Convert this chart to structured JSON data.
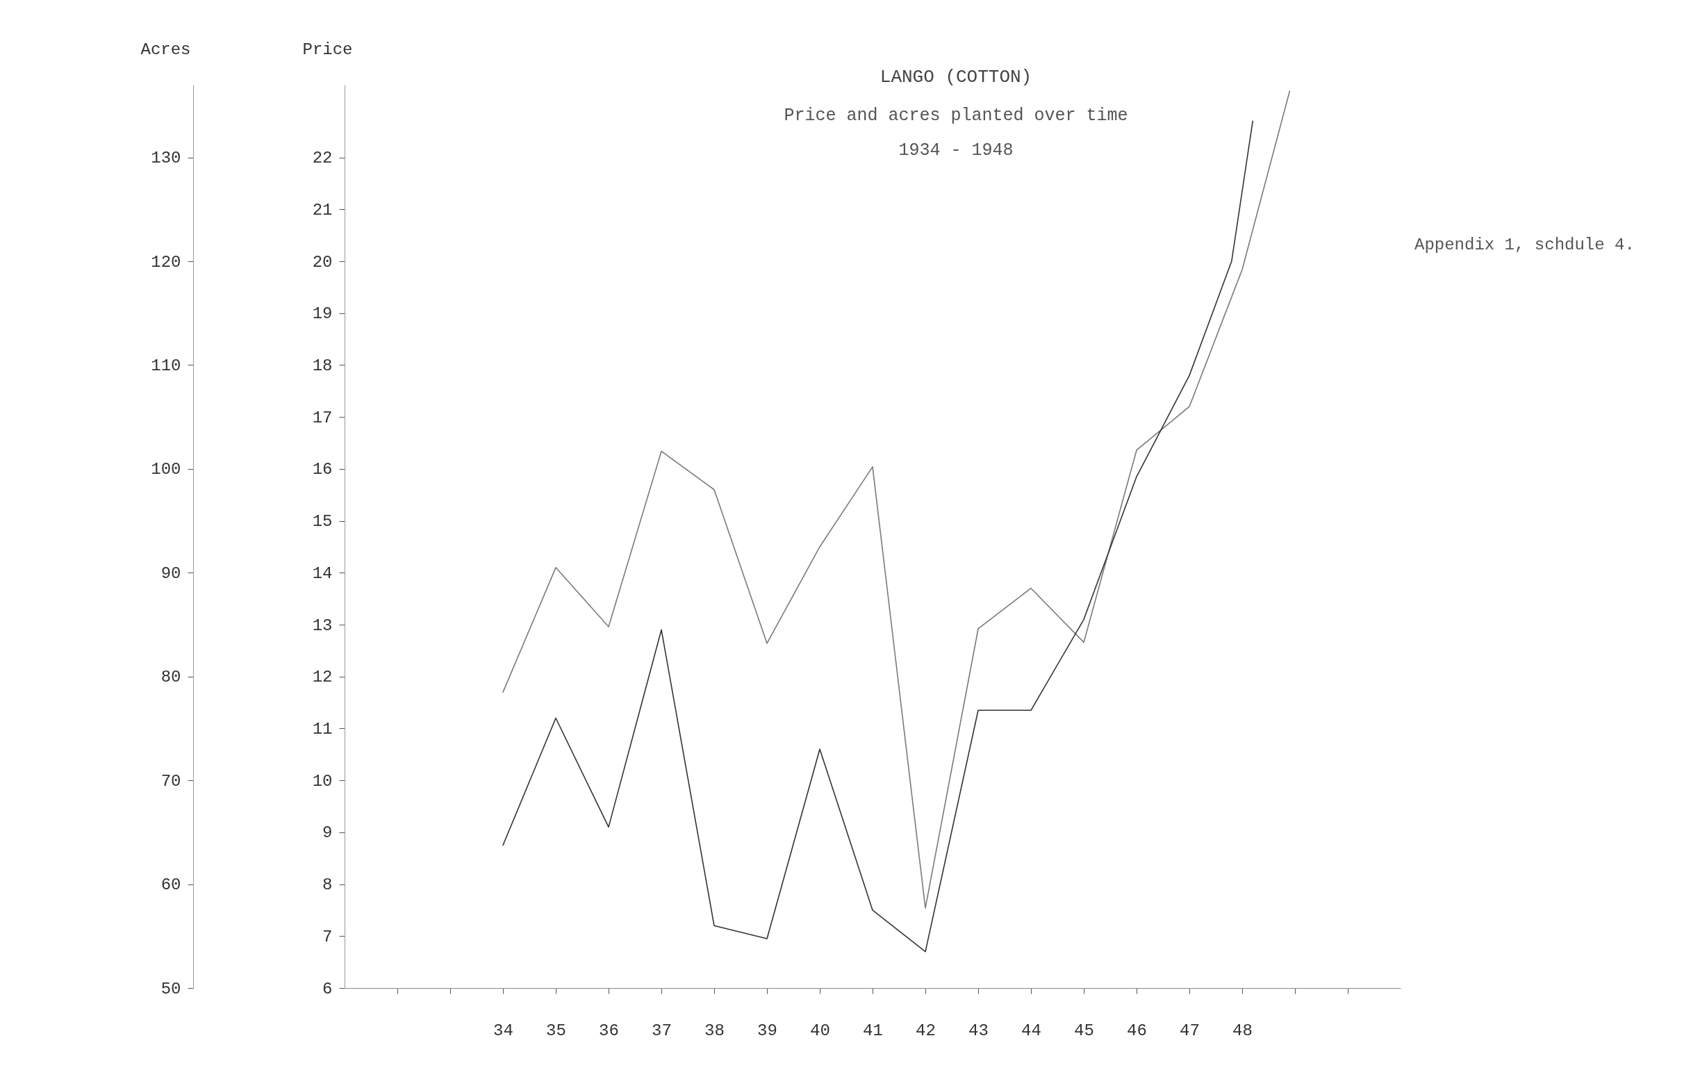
{
  "chart_data": {
    "type": "line",
    "title": "LANGO (COTTON)",
    "subtitle": "Price and acres planted over time\n1934 - 1948",
    "ylabel": "Acres",
    "y2label": "Price",
    "annotations": [
      "Appendix 1, schdule 4."
    ],
    "series": [
      {
        "color": "#7a7a7a",
        "axis": "y",
        "x": [
          34,
          35,
          36,
          37,
          38,
          39,
          40,
          41,
          42,
          43,
          44,
          45,
          46,
          47,
          48,
          48.9
        ],
        "values": [
          78.5,
          90.5,
          84.8,
          101.7,
          98,
          83.2,
          92.5,
          100.2,
          57.7,
          84.6,
          88.5,
          83.3,
          101.8,
          106,
          119.2,
          136.4
        ]
      },
      {
        "color": "#333333",
        "axis": "y2",
        "x": [
          34,
          35,
          36,
          37,
          38,
          39,
          40,
          41,
          42,
          43,
          44,
          45,
          46,
          47,
          47.8,
          48.2
        ],
        "values": [
          8.75,
          11.2,
          9.1,
          12.9,
          7.2,
          6.95,
          10.6,
          7.5,
          6.7,
          11.35,
          11.35,
          13.1,
          15.85,
          17.8,
          20.0,
          22.7
        ]
      }
    ],
    "xlim": [
      31,
      51
    ],
    "xticks": [
      {
        "value": 32,
        "label": null
      },
      {
        "value": 33,
        "label": null
      },
      {
        "value": 34,
        "label": "34"
      },
      {
        "value": 35,
        "label": "35"
      },
      {
        "value": 36,
        "label": "36"
      },
      {
        "value": 37,
        "label": "37"
      },
      {
        "value": 38,
        "label": "38"
      },
      {
        "value": 39,
        "label": "39"
      },
      {
        "value": 40,
        "label": "40"
      },
      {
        "value": 41,
        "label": "41"
      },
      {
        "value": 42,
        "label": "42"
      },
      {
        "value": 43,
        "label": "43"
      },
      {
        "value": 44,
        "label": "44"
      },
      {
        "value": 45,
        "label": "45"
      },
      {
        "value": 46,
        "label": "46"
      },
      {
        "value": 47,
        "label": "47"
      },
      {
        "value": 48,
        "label": "48"
      },
      {
        "value": 49,
        "label": null
      },
      {
        "value": 50,
        "label": null
      }
    ],
    "ylim": [
      50,
      137
    ],
    "yticks": [
      50,
      60,
      70,
      80,
      90,
      100,
      110,
      120,
      130
    ],
    "y2lim": [
      6,
      23.4
    ],
    "y2ticks": [
      6,
      7,
      8,
      9,
      10,
      11,
      12,
      13,
      14,
      15,
      16,
      17,
      18,
      19,
      20,
      21,
      22
    ],
    "grid": false,
    "line_style": "solid",
    "marker": "none"
  }
}
